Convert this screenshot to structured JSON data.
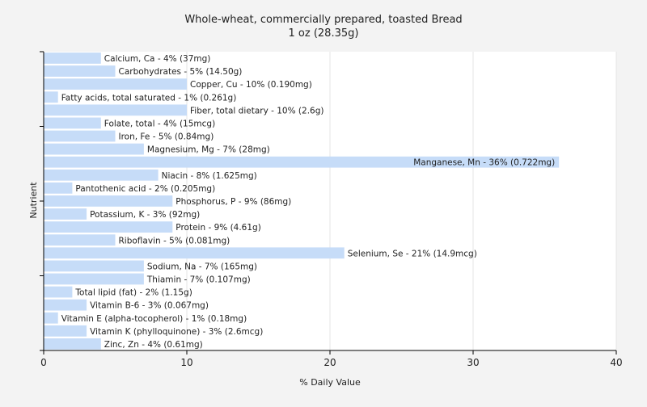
{
  "chart_data": {
    "type": "bar",
    "orientation": "horizontal",
    "title": "Whole-wheat, commercially prepared, toasted Bread",
    "subtitle": "1 oz (28.35g)",
    "xlabel": "% Daily Value",
    "ylabel": "Nutrient",
    "xlim": [
      0,
      40
    ],
    "xticks": [
      "0",
      "10",
      "20",
      "30",
      "40"
    ],
    "grid": true,
    "bar_color": "#c6dcf8",
    "categories": [
      "Calcium, Ca",
      "Carbohydrates",
      "Copper, Cu",
      "Fatty acids, total saturated",
      "Fiber, total dietary",
      "Folate, total",
      "Iron, Fe",
      "Magnesium, Mg",
      "Manganese, Mn",
      "Niacin",
      "Pantothenic acid",
      "Phosphorus, P",
      "Potassium, K",
      "Protein",
      "Riboflavin",
      "Selenium, Se",
      "Sodium, Na",
      "Thiamin",
      "Total lipid (fat)",
      "Vitamin B-6",
      "Vitamin E (alpha-tocopherol)",
      "Vitamin K (phylloquinone)",
      "Zinc, Zn"
    ],
    "values": [
      4,
      5,
      10,
      1,
      10,
      4,
      5,
      7,
      36,
      8,
      2,
      9,
      3,
      9,
      5,
      21,
      7,
      7,
      2,
      3,
      1,
      3,
      4
    ],
    "labels": [
      "Calcium, Ca - 4% (37mg)",
      "Carbohydrates - 5% (14.50g)",
      "Copper, Cu - 10% (0.190mg)",
      "Fatty acids, total saturated - 1% (0.261g)",
      "Fiber, total dietary - 10% (2.6g)",
      "Folate, total - 4% (15mcg)",
      "Iron, Fe - 5% (0.84mg)",
      "Magnesium, Mg - 7% (28mg)",
      "Manganese, Mn - 36% (0.722mg)",
      "Niacin - 8% (1.625mg)",
      "Pantothenic acid - 2% (0.205mg)",
      "Phosphorus, P - 9% (86mg)",
      "Potassium, K - 3% (92mg)",
      "Protein - 9% (4.61g)",
      "Riboflavin - 5% (0.081mg)",
      "Selenium, Se - 21% (14.9mcg)",
      "Sodium, Na - 7% (165mg)",
      "Thiamin - 7% (0.107mg)",
      "Total lipid (fat) - 2% (1.15g)",
      "Vitamin B-6 - 3% (0.067mg)",
      "Vitamin E (alpha-tocopherol) - 1% (0.18mg)",
      "Vitamin K (phylloquinone) - 3% (2.6mcg)",
      "Zinc, Zn - 4% (0.61mg)"
    ]
  }
}
